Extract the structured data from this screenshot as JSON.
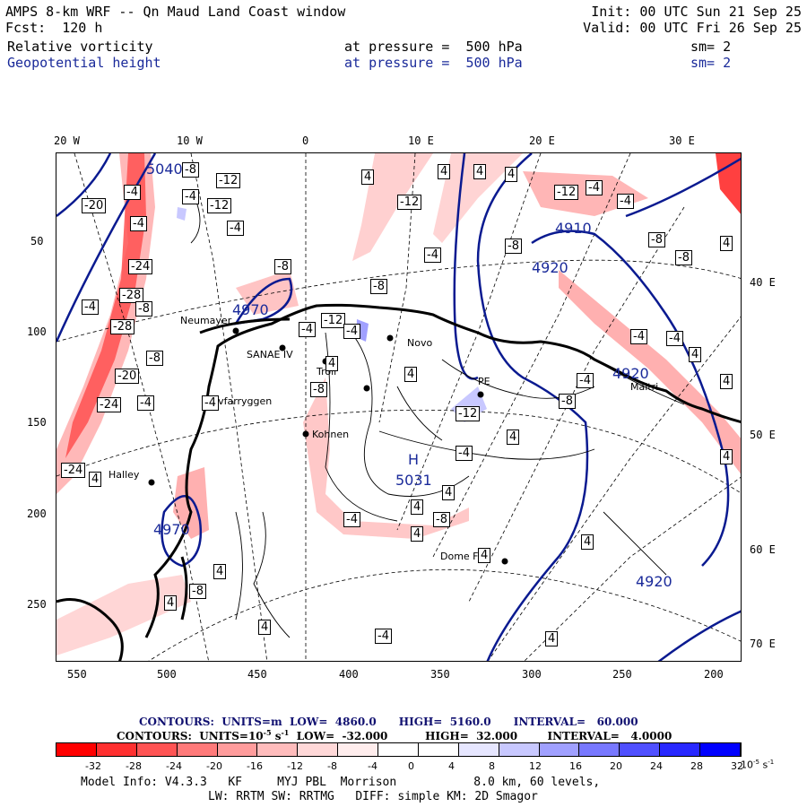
{
  "header": {
    "title": "AMPS 8-km WRF -- Qn Maud Land Coast window",
    "init": "Init: 00 UTC Sun 21 Sep 25",
    "fcst": "Fcst:  120 h",
    "valid": "Valid: 00 UTC Fri 26 Sep 25",
    "field1_name": "Relative vorticity",
    "field1_level": "at pressure =  500 hPa",
    "field1_sm": "sm= 2",
    "field2_name": "Geopotential height",
    "field2_level": "at pressure =  500 hPa",
    "field2_sm": "sm= 2"
  },
  "axes": {
    "top_lon": [
      "20 W",
      "10 W",
      "0",
      "10 E",
      "20 E",
      "30 E"
    ],
    "left_y": [
      "50",
      "100",
      "150",
      "200",
      "250"
    ],
    "bottom_x": [
      "550",
      "500",
      "450",
      "400",
      "350",
      "300",
      "250",
      "200"
    ],
    "right_lon": [
      "40 E",
      "50 E",
      "60 E",
      "70 E"
    ]
  },
  "map": {
    "stations": [
      "Neumayer",
      "SANAE IV",
      "Troll",
      "Novo",
      "PE",
      "Kohnen",
      "Halley",
      "Dome Fuji",
      "Halvfarryggen",
      "Maitri"
    ],
    "height_labels": [
      "5040",
      "4970",
      "4910",
      "4920",
      "4920",
      "5031",
      "4970",
      "4920"
    ],
    "high_label": "H",
    "vort_labels": [
      "-8",
      "-12",
      "-4",
      "-4",
      "-8",
      "-12",
      "-4",
      "-4",
      "-24",
      "-28",
      "-28",
      "-20",
      "-24",
      "-24",
      "-20",
      "-8",
      "-4",
      "-8",
      "-4",
      "-4",
      "4",
      "4",
      "4",
      "4",
      "4",
      "-12",
      "-4",
      "-8",
      "4",
      "4",
      "-12",
      "-8",
      "-4",
      "-4",
      "-8",
      "-12",
      "-4",
      "-4",
      "-8",
      "-4",
      "4",
      "-4",
      "4",
      "-8",
      "4",
      "4",
      "-4",
      "-8",
      "4",
      "-4",
      "4",
      "-4",
      "-12",
      "-8",
      "4",
      "-4",
      "4",
      "4",
      "4",
      "-8",
      "4",
      "4",
      "4",
      "4"
    ]
  },
  "contours": {
    "height": "CONTOURS:  UNITS=m  LOW=  4860.0      HIGH=  5160.0      INTERVAL=   60.000",
    "vort": "CONTOURS:  UNITS=10",
    "vort_exp": "-5",
    "vort_rest": " s",
    "vort_exp2": "-1",
    "vort_tail": "  LOW=  -32.000          HIGH=  32.000        INTERVAL=   4.0000"
  },
  "colorbar": {
    "colors": [
      "#ff0000",
      "#ff3030",
      "#ff5454",
      "#ff7a7a",
      "#ff9c9c",
      "#ffbcbc",
      "#ffd8d8",
      "#ffeded",
      "#ffffff",
      "#ffffff",
      "#e6e6ff",
      "#c8c8ff",
      "#a0a0ff",
      "#7878ff",
      "#5050ff",
      "#2828ff",
      "#0000ff"
    ],
    "labels": [
      "-32",
      "-28",
      "-24",
      "-20",
      "-16",
      "-12",
      "-8",
      "-4",
      "0",
      "4",
      "8",
      "12",
      "16",
      "20",
      "24",
      "28",
      "32"
    ],
    "unit": "10",
    "unit_exp": "-5",
    "unit_s": " s",
    "unit_s_exp": "-1"
  },
  "footer": {
    "line1": "Model Info: V4.3.3   KF     MYJ PBL  Morrison           8.0 km, 60 levels,",
    "line2": "LW: RRTM SW: RRTMG   DIFF: simple KM: 2D Smagor"
  }
}
